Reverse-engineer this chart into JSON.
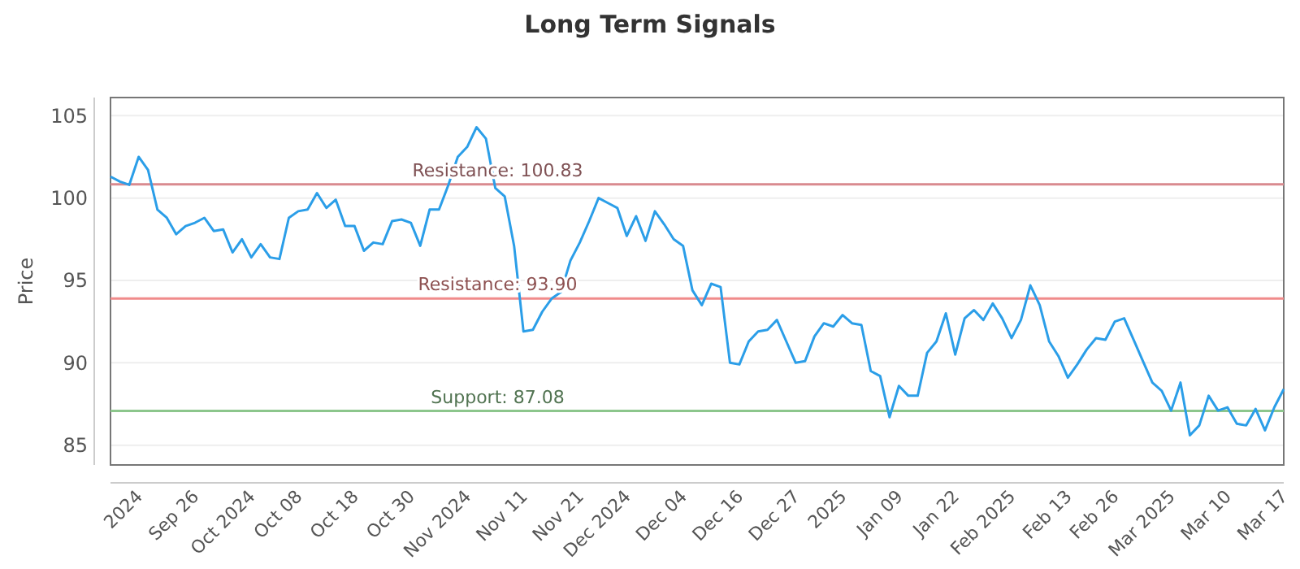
{
  "chart_data": {
    "type": "line",
    "title": "Long Term Signals",
    "ylabel": "Price",
    "categories": [
      null,
      null,
      null,
      "2024",
      null,
      null,
      null,
      null,
      null,
      "Sep 26",
      null,
      null,
      null,
      null,
      null,
      "Oct 2024",
      null,
      null,
      null,
      null,
      "Oct 08",
      null,
      null,
      null,
      null,
      null,
      "Oct 18",
      null,
      null,
      null,
      null,
      null,
      "Oct 30",
      null,
      null,
      null,
      null,
      null,
      "Nov 2024",
      null,
      null,
      null,
      null,
      null,
      "Nov 11",
      null,
      null,
      null,
      null,
      null,
      "Nov 21",
      null,
      null,
      null,
      null,
      "Dec 2024",
      null,
      null,
      null,
      null,
      null,
      "Dec 04",
      null,
      null,
      null,
      null,
      null,
      "Dec 16",
      null,
      null,
      null,
      null,
      null,
      "Dec 27",
      null,
      null,
      null,
      null,
      "2025",
      null,
      null,
      null,
      null,
      null,
      "Jan 09",
      null,
      null,
      null,
      null,
      null,
      "Jan 22",
      null,
      null,
      null,
      null,
      null,
      "Feb 2025",
      null,
      null,
      null,
      null,
      null,
      "Feb 13",
      null,
      null,
      null,
      null,
      "Feb 26",
      null,
      null,
      null,
      null,
      null,
      "Mar 2025",
      null,
      null,
      null,
      null,
      null,
      "Mar 10",
      null,
      null,
      null,
      null,
      null,
      "Mar 17"
    ],
    "series": [
      {
        "color": "#2b9ee8",
        "values": [
          101.3,
          101.0,
          100.8,
          102.5,
          101.7,
          99.3,
          98.8,
          97.8,
          98.3,
          98.5,
          98.8,
          98.0,
          98.1,
          96.7,
          97.5,
          96.4,
          97.2,
          96.4,
          96.3,
          98.8,
          99.2,
          99.3,
          100.3,
          99.4,
          99.9,
          98.3,
          98.3,
          96.8,
          97.3,
          97.2,
          98.6,
          98.7,
          98.5,
          97.1,
          99.3,
          99.3,
          100.8,
          102.5,
          103.1,
          104.3,
          103.6,
          100.6,
          100.1,
          97.1,
          91.9,
          92.0,
          93.1,
          93.9,
          94.3,
          96.2,
          97.3,
          98.6,
          100.0,
          99.7,
          99.4,
          97.7,
          98.9,
          97.4,
          99.2,
          98.4,
          97.5,
          97.1,
          94.4,
          93.5,
          94.8,
          94.6,
          90.0,
          89.9,
          91.3,
          91.9,
          92.0,
          92.6,
          91.3,
          90.0,
          90.1,
          91.6,
          92.4,
          92.2,
          92.9,
          92.4,
          92.3,
          89.5,
          89.2,
          86.7,
          88.6,
          88.0,
          88.0,
          90.6,
          91.3,
          93.0,
          90.5,
          92.7,
          93.2,
          92.6,
          93.6,
          92.7,
          91.5,
          92.6,
          94.7,
          93.5,
          91.3,
          90.4,
          89.1,
          89.9,
          90.8,
          91.5,
          91.4,
          92.5,
          92.7,
          91.4,
          90.1,
          88.8,
          88.3,
          87.1,
          88.8,
          85.6,
          86.2,
          88.0,
          87.1,
          87.3,
          86.3,
          86.2,
          87.2,
          85.9,
          87.3,
          88.4
        ]
      }
    ],
    "ylim": [
      83.8,
      106.1
    ],
    "yticks": [
      85,
      90,
      95,
      100,
      105
    ],
    "grid": "y",
    "marker": "none",
    "line_style": "solid",
    "ref_lines": [
      {
        "axis": "y",
        "value": 100.83,
        "label": "Resistance: 100.83",
        "color": "#d98a8f"
      },
      {
        "axis": "y",
        "value": 93.9,
        "label": "Resistance: 93.90",
        "color": "#f08b8b"
      },
      {
        "axis": "y",
        "value": 87.08,
        "label": "Support: 87.08",
        "color": "#8cc68c"
      }
    ]
  }
}
